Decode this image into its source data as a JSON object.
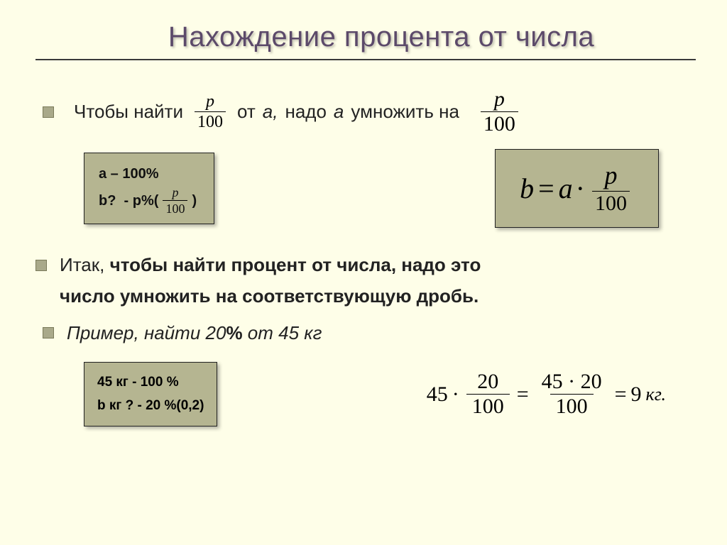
{
  "colors": {
    "background": "#fefee8",
    "title": "#5c4a6a",
    "box_bg": "#b5b591",
    "box_border": "#222222",
    "bullet": "#a9a98a",
    "rule": "#3a3a3a",
    "text": "#222222"
  },
  "title": "Нахождение процента от числа",
  "line1": {
    "part1": "Чтобы найти",
    "frac_num": "p",
    "frac_den": "100",
    "part2": "от",
    "italic_a1": "a,",
    "part3": "надо",
    "italic_a2": "a",
    "part4": "умножить на",
    "frac2_num": "p",
    "frac2_den": "100"
  },
  "box_left": {
    "l1_a": "a",
    "l1_rest": " – 100%",
    "l2_a": "b?",
    "l2_mid": "  - p%(",
    "frac_num": "p",
    "frac_den": "100",
    "l2_end": " )"
  },
  "formula": {
    "b": "b",
    "eq": " = ",
    "a": "a",
    "dot": " · ",
    "num": "p",
    "den": "100"
  },
  "rule_line": {
    "l1": "Итак, чтобы найти процент от числа, надо это",
    "l2": "число умножить на соответствующую дробь."
  },
  "example": {
    "prefix": "Пример, найти 20",
    "pct": "%",
    "suffix": " от 45 кг"
  },
  "box_bottom": {
    "l1": "45 кг - 100 %",
    "l2": "b кг ? - 20 %(0,2)"
  },
  "calc": {
    "a": "45",
    "dot1": "·",
    "f1_num": "20",
    "f1_den": "100",
    "eq1": "=",
    "f2_num": "45 · 20",
    "f2_den": "100",
    "eq2": "=",
    "result": "9",
    "unit": "кг."
  }
}
